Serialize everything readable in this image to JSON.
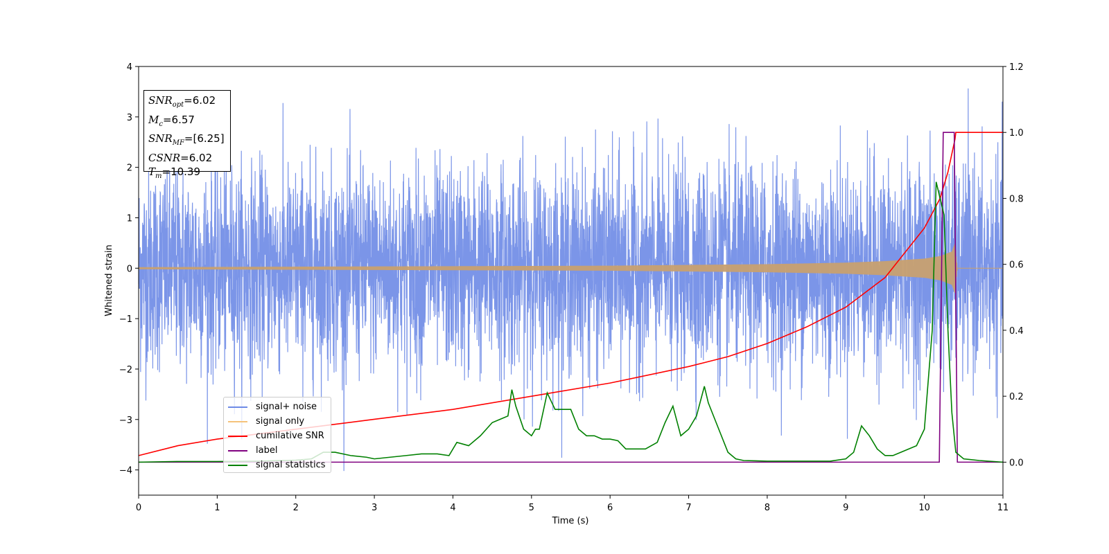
{
  "chart_data": {
    "type": "line",
    "xlabel": "Time (s)",
    "ylabel": "Whitened strain",
    "xlim": [
      0,
      11
    ],
    "ylim_left": [
      -4.5,
      4
    ],
    "ylim_right": [
      -0.1,
      1.2
    ],
    "x_ticks": [
      "0",
      "1",
      "2",
      "3",
      "4",
      "5",
      "6",
      "7",
      "8",
      "9",
      "10",
      "11"
    ],
    "y_ticks_left": [
      "4",
      "3",
      "2",
      "1",
      "0",
      "−1",
      "−2",
      "−3",
      "−4"
    ],
    "y_ticks_left_values": [
      4,
      3,
      2,
      1,
      0,
      -1,
      -2,
      -3,
      -4
    ],
    "y_ticks_right": [
      "1.2",
      "1.0",
      "0.8",
      "0.6",
      "0.4",
      "0.2",
      "0.0"
    ],
    "y_ticks_right_values": [
      1.2,
      1.0,
      0.8,
      0.6,
      0.4,
      0.2,
      0.0
    ],
    "annotation": {
      "snr_opt": "6.02",
      "mc": "6.57",
      "snr_mf": "[6.25]",
      "csnr": "6.02",
      "tm": "10.39"
    },
    "legend": {
      "placement": "lower-left",
      "items": [
        {
          "label": "signal+ noise",
          "color": "#6d8ae6"
        },
        {
          "label": "signal only",
          "color": "#f5c27a"
        },
        {
          "label": "cumilative SNR",
          "color": "#ff0000"
        },
        {
          "label": "label",
          "color": "#800080"
        },
        {
          "label": "signal statistics",
          "color": "#008000"
        }
      ]
    },
    "series": [
      {
        "name": "signal+ noise",
        "axis": "left",
        "color": "#6d8ae6",
        "description_range": [
          -4.2,
          3.65
        ],
        "x_end": 11
      },
      {
        "name": "signal only",
        "axis": "left",
        "color": "#c8a070",
        "envelope": {
          "x": [
            0,
            2,
            4,
            6,
            8,
            9,
            9.5,
            10,
            10.2,
            10.35,
            10.39,
            10.42
          ],
          "amp": [
            0.02,
            0.03,
            0.04,
            0.05,
            0.08,
            0.11,
            0.14,
            0.19,
            0.24,
            0.33,
            0.5,
            0.0
          ]
        }
      },
      {
        "name": "cumilative SNR",
        "axis": "right",
        "x": [
          0,
          0.5,
          1,
          2,
          3,
          4,
          5,
          6,
          7,
          7.5,
          8,
          8.5,
          9,
          9.5,
          10,
          10.2,
          10.3,
          10.39,
          10.4,
          11
        ],
        "y": [
          0.02,
          0.05,
          0.07,
          0.1,
          0.13,
          0.16,
          0.2,
          0.24,
          0.29,
          0.32,
          0.36,
          0.41,
          0.47,
          0.56,
          0.71,
          0.8,
          0.88,
          0.98,
          1.0,
          1.0
        ]
      },
      {
        "name": "label",
        "axis": "right",
        "x": [
          0,
          10.19,
          10.24,
          10.38,
          10.42,
          11
        ],
        "y": [
          0,
          0,
          1,
          1,
          0,
          0
        ]
      },
      {
        "name": "signal statistics",
        "axis": "right",
        "x": [
          0,
          0.5,
          1,
          1.5,
          2,
          2.2,
          2.35,
          2.5,
          2.7,
          2.9,
          3,
          3.2,
          3.4,
          3.6,
          3.8,
          3.95,
          4.05,
          4.2,
          4.35,
          4.5,
          4.6,
          4.7,
          4.75,
          4.8,
          4.9,
          5,
          5.05,
          5.1,
          5.2,
          5.3,
          5.4,
          5.5,
          5.6,
          5.7,
          5.8,
          5.9,
          6,
          6.1,
          6.2,
          6.3,
          6.45,
          6.6,
          6.7,
          6.8,
          6.9,
          7,
          7.1,
          7.2,
          7.25,
          7.35,
          7.5,
          7.6,
          7.7,
          7.85,
          8,
          8.5,
          8.8,
          9,
          9.1,
          9.2,
          9.3,
          9.4,
          9.5,
          9.6,
          9.7,
          9.8,
          9.9,
          10.0,
          10.1,
          10.15,
          10.25,
          10.3,
          10.35,
          10.4,
          10.5,
          10.7,
          11
        ],
        "y": [
          0,
          0.002,
          0.002,
          0.003,
          0.006,
          0.01,
          0.03,
          0.03,
          0.02,
          0.015,
          0.01,
          0.015,
          0.02,
          0.025,
          0.025,
          0.02,
          0.06,
          0.05,
          0.08,
          0.12,
          0.13,
          0.14,
          0.22,
          0.17,
          0.1,
          0.08,
          0.1,
          0.1,
          0.21,
          0.16,
          0.16,
          0.16,
          0.1,
          0.08,
          0.08,
          0.07,
          0.07,
          0.065,
          0.04,
          0.04,
          0.04,
          0.06,
          0.12,
          0.17,
          0.08,
          0.1,
          0.14,
          0.23,
          0.18,
          0.12,
          0.03,
          0.01,
          0.005,
          0.004,
          0.003,
          0.003,
          0.003,
          0.01,
          0.03,
          0.11,
          0.08,
          0.04,
          0.02,
          0.02,
          0.03,
          0.04,
          0.05,
          0.1,
          0.4,
          0.85,
          0.75,
          0.4,
          0.15,
          0.03,
          0.01,
          0.005,
          0.0
        ]
      }
    ]
  }
}
